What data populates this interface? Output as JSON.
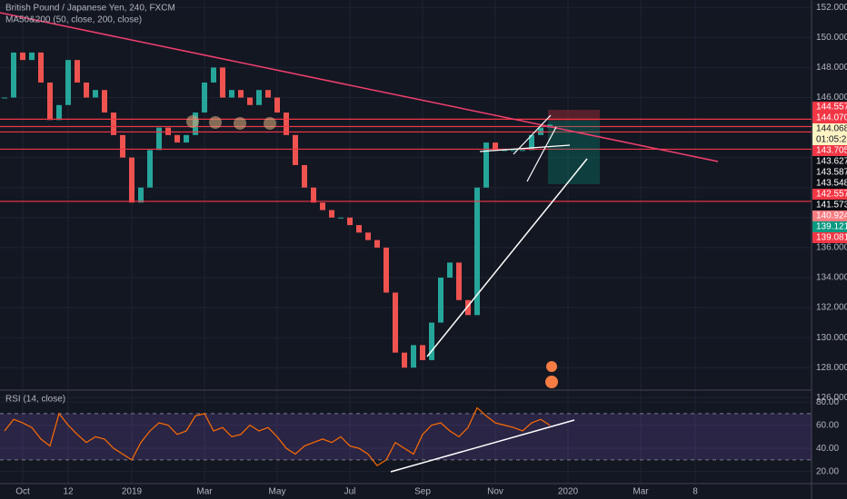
{
  "chart_data": [
    {
      "type": "candles",
      "title": "British Pound / Japanese Yen, 240, FXCM",
      "subtitle": "MA50&200 (50, close, 200, close)",
      "categories": [
        null,
        null,
        "Oct",
        null,
        null,
        null,
        null,
        "12",
        null,
        null,
        null,
        null,
        null,
        null,
        "2019",
        null,
        null,
        null,
        null,
        null,
        null,
        null,
        "Mar",
        null,
        null,
        null,
        null,
        null,
        null,
        null,
        "May",
        null,
        null,
        null,
        null,
        null,
        null,
        null,
        "Jul",
        null,
        null,
        null,
        null,
        null,
        null,
        null,
        "Sep",
        null,
        null,
        null,
        null,
        null,
        null,
        null,
        "Nov",
        null,
        null,
        null,
        null,
        null,
        null,
        null,
        "2020",
        null,
        null,
        null,
        null,
        null,
        null,
        null,
        "Mar",
        null,
        null,
        null,
        null,
        null,
        "8",
        null
      ],
      "values": [
        146,
        149,
        148.5,
        149,
        147,
        144.5,
        145.5,
        148.5,
        147,
        146,
        146.5,
        145,
        143.5,
        142,
        139,
        140,
        142.5,
        144,
        143.5,
        143,
        143.5,
        145,
        147,
        148,
        146,
        146.5,
        146,
        145.5,
        146.5,
        146,
        145,
        143.5,
        141.5,
        140,
        139,
        138.5,
        138,
        138,
        137.5,
        137,
        136.5,
        136,
        133,
        129,
        128,
        129.5,
        128.5,
        131,
        134,
        135,
        132.5,
        131.5,
        140,
        143,
        142.5,
        142.5,
        142.5,
        142.5,
        143.5,
        144,
        144.2,
        null,
        null,
        null,
        null,
        null,
        null,
        null,
        null,
        null,
        null,
        null,
        null,
        null,
        null,
        null,
        null,
        null
      ],
      "up_color": "#26a69a",
      "down_color": "#ef5350",
      "ylim": [
        126.5,
        152.5
      ],
      "yticks": [
        {
          "value": 152,
          "label": "152.000"
        },
        {
          "value": 150,
          "label": "150.000"
        },
        {
          "value": 148,
          "label": "148.000"
        },
        {
          "value": 146,
          "label": "146.000"
        },
        {
          "value": 144,
          "label": "144.000"
        },
        {
          "value": 142,
          "label": "142.000"
        },
        {
          "value": 140,
          "label": "140.000"
        },
        {
          "value": 138,
          "label": "138.000"
        },
        {
          "value": 136,
          "label": "136.000"
        },
        {
          "value": 134,
          "label": "134.000"
        },
        {
          "value": 132,
          "label": "132.000"
        },
        {
          "value": 130,
          "label": "130.000"
        },
        {
          "value": 128,
          "label": "128.000"
        },
        {
          "value": 126,
          "label": "126.000"
        }
      ],
      "price_labels": [
        {
          "value": 144.557,
          "color": "#f23645"
        },
        {
          "value": 144.07,
          "label": "144.070",
          "color": "#f23645"
        },
        {
          "value": 144.068,
          "color": "#fff3c4"
        },
        {
          "label": "01:05:28",
          "color": "#fff3c4"
        },
        {
          "value": 143.705,
          "color": "#f23645"
        },
        {
          "value": 143.627,
          "color": "#0c0e15"
        },
        {
          "value": 143.587,
          "color": "#0c0e15"
        },
        {
          "value": 143.548,
          "color": "#0c0e15"
        },
        {
          "value": 142.557,
          "color": "#f23645"
        },
        {
          "value": 141.573,
          "color": "#0c0e15"
        },
        {
          "value": 140.924,
          "color": "#f77c80"
        },
        {
          "value": 139.121,
          "color": "#089981"
        },
        {
          "value": 139.081,
          "color": "#f23645"
        }
      ],
      "grid": true
    },
    {
      "type": "line",
      "title": "RSI (14, close)",
      "values": [
        55,
        65,
        62,
        58,
        48,
        42,
        70,
        60,
        52,
        45,
        50,
        48,
        40,
        35,
        30,
        45,
        55,
        62,
        60,
        52,
        55,
        68,
        70,
        55,
        58,
        50,
        52,
        60,
        55,
        58,
        50,
        40,
        35,
        42,
        45,
        48,
        45,
        50,
        42,
        40,
        35,
        25,
        30,
        45,
        40,
        35,
        52,
        60,
        62,
        55,
        50,
        58,
        75,
        68,
        62,
        60,
        58,
        55,
        62,
        65,
        60
      ],
      "color": "#ff6d00",
      "band": [
        30,
        70
      ],
      "ylim": [
        9.5,
        89.5
      ],
      "yticks": [
        {
          "value": 80,
          "label": "80.00"
        },
        {
          "value": 60,
          "label": "60.00"
        },
        {
          "value": 40,
          "label": "40.00"
        },
        {
          "value": 20,
          "label": "20.00"
        }
      ]
    }
  ]
}
